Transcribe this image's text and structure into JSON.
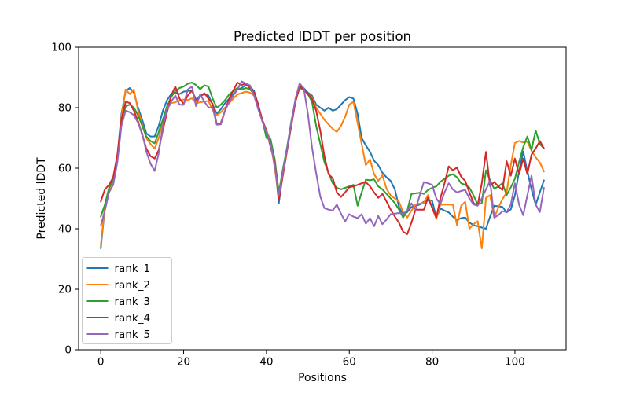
{
  "figure": {
    "title": "Predicted lDDT per position",
    "xlabel": "Positions",
    "ylabel": "Predicted lDDT",
    "background": "#ffffff",
    "text_color": "#000000",
    "spine_color": "#000000"
  },
  "chart_data": {
    "type": "line",
    "title": "Predicted lDDT per position",
    "xlabel": "Positions",
    "ylabel": "Predicted lDDT",
    "xlim": [
      -5.35,
      112.35
    ],
    "ylim": [
      0,
      100
    ],
    "xticks": [
      0,
      20,
      40,
      60,
      80,
      100
    ],
    "yticks": [
      0,
      20,
      40,
      60,
      80,
      100
    ],
    "grid": false,
    "legend_position": "lower left",
    "x": {
      "start": 0,
      "step": 1,
      "count": 108,
      "note": "position index 0-107"
    },
    "series": [
      {
        "name": "rank_1",
        "color": "#1f77b4",
        "values": [
          33.5,
          47,
          53,
          56,
          64,
          78,
          85.5,
          86.5,
          85,
          80,
          76,
          71.5,
          70.5,
          70.5,
          74,
          79,
          82.5,
          84.5,
          85,
          84.5,
          85.3,
          85.5,
          85.7,
          82.7,
          84,
          84.4,
          84,
          81,
          78,
          79.5,
          81.5,
          83,
          84.5,
          86,
          86.5,
          87.5,
          87,
          85.5,
          81,
          75.5,
          72,
          69.5,
          62,
          48.5,
          59,
          67,
          75.5,
          82.5,
          87.5,
          86.5,
          85,
          84,
          81,
          80,
          79,
          80,
          79,
          79.5,
          81,
          82.5,
          83.5,
          83,
          78,
          70,
          67.5,
          65.4,
          62.5,
          61,
          58.5,
          57,
          55.8,
          53,
          47.2,
          44.6,
          45.5,
          47.2,
          47.5,
          48,
          48.9,
          49.3,
          49.3,
          43.7,
          46.7,
          46,
          45.4,
          44,
          42.9,
          43.5,
          43.7,
          42,
          41.2,
          40.8,
          40.4,
          40,
          44,
          47.6,
          47.4,
          47.2,
          45.4,
          46.4,
          51,
          59,
          65.5,
          59,
          53,
          47.9,
          52,
          56
        ]
      },
      {
        "name": "rank_2",
        "color": "#ff7f0e",
        "values": [
          34.5,
          47.5,
          52.5,
          55,
          63,
          77,
          86,
          84.5,
          86,
          79,
          74.5,
          70,
          68,
          66.5,
          70,
          75.3,
          79.5,
          81.5,
          81.8,
          82.3,
          82.7,
          82.5,
          83.1,
          81.5,
          81.8,
          82,
          82.2,
          79.2,
          77.5,
          78.5,
          80,
          81.5,
          83,
          84.4,
          84.8,
          85.3,
          85,
          84,
          80,
          75.5,
          72.5,
          68.5,
          60,
          50.5,
          58,
          66,
          74.5,
          82,
          86.5,
          86,
          84.5,
          83.5,
          80,
          78,
          76,
          74.5,
          73,
          72,
          74,
          77,
          81,
          82,
          75,
          68,
          61,
          62.9,
          58,
          55.8,
          57.7,
          53.2,
          51,
          50,
          48.9,
          45.5,
          43.7,
          46,
          48,
          48.3,
          48.5,
          51.1,
          47,
          43.3,
          47.9,
          48,
          48,
          48,
          41.2,
          47.6,
          48.9,
          40,
          41.5,
          42.5,
          33.5,
          50.2,
          51.1,
          43.7,
          47,
          49.8,
          52,
          61,
          68.3,
          69,
          68.5,
          68.8,
          65.8,
          63.6,
          61.9,
          58.9
        ]
      },
      {
        "name": "rank_3",
        "color": "#2ca02c",
        "values": [
          44,
          48,
          53.5,
          56,
          63.5,
          75,
          80.5,
          81,
          80,
          77.5,
          74,
          70.5,
          69,
          68.2,
          72,
          76.1,
          80.5,
          83.5,
          85.5,
          86.5,
          87,
          87.9,
          88.3,
          87.5,
          86.1,
          87.4,
          87,
          83,
          80,
          81,
          82.5,
          84.4,
          85.5,
          86.5,
          86,
          86.5,
          86.1,
          84.5,
          80.5,
          76,
          70,
          69.5,
          63,
          52,
          60,
          67,
          75,
          82.5,
          86.5,
          86,
          84.5,
          82,
          74,
          68,
          62,
          58.5,
          55,
          53.5,
          53,
          53.5,
          54,
          54.5,
          47.6,
          52,
          56.2,
          56,
          56.3,
          54,
          53,
          51.5,
          50,
          48.5,
          46.3,
          43.7,
          46,
          51.5,
          51.7,
          51.9,
          51.5,
          52.8,
          53.5,
          54,
          55.5,
          56.5,
          57.5,
          58,
          57,
          55,
          54.5,
          53.6,
          51,
          48,
          48.5,
          59.3,
          56,
          53.2,
          54,
          55,
          51.1,
          53.7,
          56.5,
          62,
          67,
          70.5,
          66,
          72.5,
          68,
          66.5
        ]
      },
      {
        "name": "rank_4",
        "color": "#d62728",
        "values": [
          49,
          53,
          54.5,
          57,
          64.5,
          76,
          82,
          81.5,
          79,
          75.5,
          71,
          66.5,
          64,
          63.2,
          66,
          72.7,
          78.5,
          84,
          87,
          83,
          81.3,
          84,
          85.7,
          82.2,
          83.5,
          84.8,
          83,
          81.3,
          74.5,
          75,
          79,
          83.1,
          85.7,
          88.3,
          87.5,
          88,
          86.5,
          85,
          81,
          76,
          72.5,
          67,
          62,
          49.5,
          58,
          66,
          74,
          82,
          87,
          86,
          84.5,
          83,
          79,
          72.3,
          64,
          58,
          56.7,
          52,
          50.5,
          52,
          53.7,
          54,
          54.5,
          55,
          55.4,
          54,
          52,
          50.2,
          51.5,
          49,
          46.3,
          44,
          42,
          39,
          38.2,
          42,
          46.3,
          46.3,
          46.3,
          50.2,
          47,
          43.7,
          50,
          55,
          60.6,
          59.3,
          60.2,
          57.2,
          55.8,
          52,
          48.5,
          47.6,
          55,
          65.4,
          54.1,
          55.4,
          54,
          52.8,
          62.3,
          57.5,
          63.2,
          58,
          63.2,
          58,
          64.5,
          66.5,
          69,
          66.5
        ]
      },
      {
        "name": "rank_5",
        "color": "#9467bd",
        "values": [
          41,
          46,
          52,
          54.5,
          62,
          74,
          79,
          78.5,
          77.5,
          75,
          71.5,
          65.5,
          61.5,
          59.1,
          65,
          74,
          79.5,
          82,
          84,
          81,
          80.9,
          86,
          87,
          80.5,
          84.4,
          82,
          80.1,
          80,
          74.4,
          74.5,
          79,
          82,
          84,
          86,
          88.7,
          88,
          87.4,
          84,
          79.5,
          75.5,
          72,
          68,
          61,
          51,
          59,
          66.5,
          75,
          83,
          88,
          86.5,
          78,
          67,
          58.4,
          50.6,
          46.8,
          46.3,
          46,
          48,
          45,
          42.4,
          44.8,
          44,
          43.5,
          44.8,
          41.7,
          43.5,
          40.8,
          44.2,
          41.5,
          43,
          44.8,
          45,
          45.2,
          45,
          46,
          48.4,
          46.3,
          51,
          55.4,
          55,
          54.5,
          50,
          48.1,
          52,
          55,
          53,
          52,
          52.5,
          52.8,
          50,
          48,
          47.6,
          50,
          53,
          55.8,
          43.7,
          44.5,
          45.8,
          45.5,
          48,
          55,
          48,
          44.5,
          51,
          57.5,
          48,
          45.5,
          53.5
        ]
      }
    ]
  }
}
